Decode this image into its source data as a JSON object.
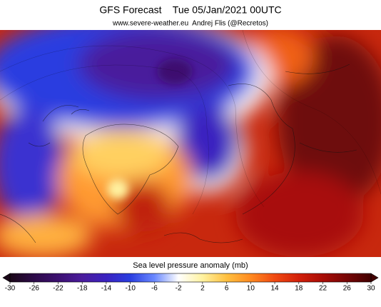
{
  "title": "GFS Forecast    Tue 05/Jan/2021 00UTC",
  "subtitle": "www.severe-weather.eu  Andrej Flis (@Recretos)",
  "colorbar": {
    "label": "Sea level pressure anomaly (mb)",
    "lim": [
      -30,
      30
    ],
    "ticks": [
      -30,
      -26,
      -22,
      -18,
      -14,
      -10,
      -6,
      -2,
      2,
      6,
      10,
      14,
      18,
      22,
      26,
      30
    ],
    "colors": [
      "#1a0818",
      "#2c0a48",
      "#3c1070",
      "#4a1c9c",
      "#3a22c0",
      "#2a3ee0",
      "#6a88ff",
      "#ffffff",
      "#fff2a0",
      "#ffc040",
      "#ff8a20",
      "#f04a12",
      "#d2200a",
      "#a80c06",
      "#760606",
      "#420000"
    ]
  }
}
